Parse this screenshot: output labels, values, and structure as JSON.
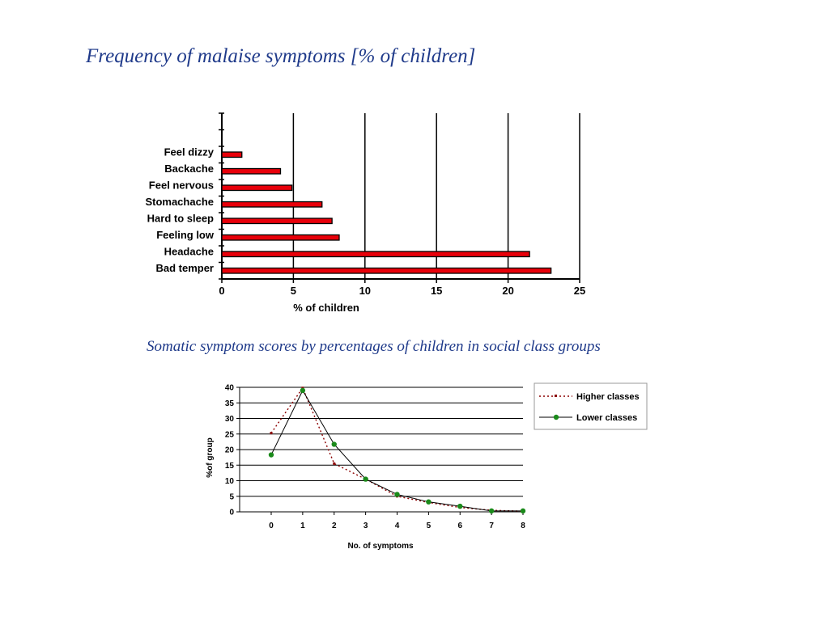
{
  "page": {
    "title": "Frequency of malaise symptoms [% of children]",
    "caption": "Somatic symptom scores by percentages of children in social class groups"
  },
  "colors": {
    "title_text": "#1f3a8a",
    "bar_fill": "#e8000a",
    "higher_classes_line": "#8b0000",
    "lower_classes_line": "#000000",
    "lower_classes_marker": "#1a8a1a"
  },
  "chart_data": [
    {
      "type": "bar",
      "orientation": "horizontal",
      "categories": [
        "Feel dizzy",
        "Backache",
        "Feel nervous",
        "Stomachache",
        "Hard to sleep",
        "Feeling low",
        "Headache",
        "Bad temper"
      ],
      "values": [
        1.4,
        4.1,
        4.9,
        7.0,
        7.7,
        8.2,
        21.5,
        23.0
      ],
      "xlabel": "% of children",
      "ylabel": "",
      "xlim": [
        0,
        25
      ],
      "xticks": [
        "0",
        "5",
        "10",
        "15",
        "20",
        "25"
      ],
      "grid": "vertical",
      "legend": "none"
    },
    {
      "type": "line",
      "x": [
        "0",
        "1",
        "2",
        "3",
        "4",
        "5",
        "6",
        "7",
        "8"
      ],
      "series": [
        {
          "name": "Higher classes",
          "values": [
            25.3,
            39.8,
            15.5,
            10.5,
            5.0,
            3.0,
            1.4,
            0.5,
            0.2
          ]
        },
        {
          "name": "Lower classes",
          "values": [
            18.3,
            39.0,
            21.7,
            10.5,
            5.6,
            3.2,
            1.8,
            0.3,
            0.3
          ]
        }
      ],
      "xlabel": "No. of symptoms",
      "ylabel": "%of group",
      "ylim": [
        0,
        40
      ],
      "yticks": [
        "0",
        "5",
        "10",
        "15",
        "20",
        "25",
        "30",
        "35",
        "40"
      ],
      "grid": "horizontal",
      "legend": "right"
    }
  ]
}
